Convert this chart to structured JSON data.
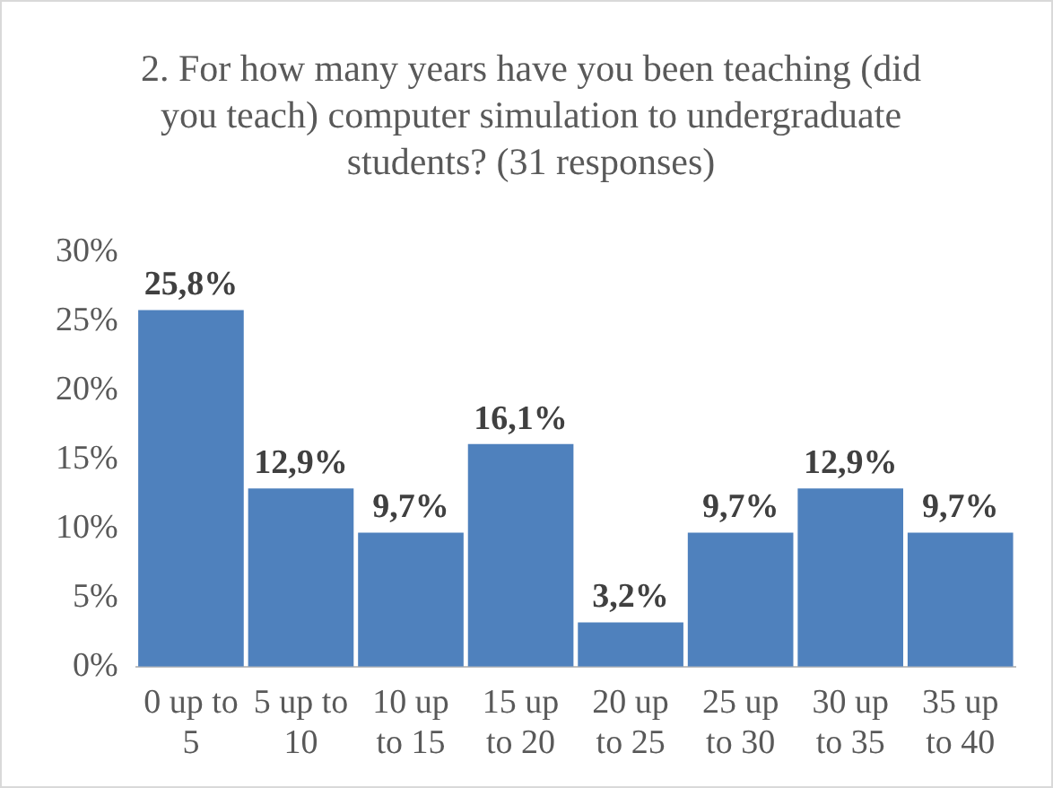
{
  "chart_data": {
    "type": "bar",
    "title": "2. For how many years have you been teaching (did you teach) computer simulation to undergraduate students? (31 responses)",
    "categories": [
      "0 up to 5",
      "5 up to 10",
      "10 up to 15",
      "15 up to 20",
      "20 up to 25",
      "25 up to 30",
      "30 up to 35",
      "35 up to 40"
    ],
    "values": [
      25.8,
      12.9,
      9.7,
      16.1,
      3.2,
      9.7,
      12.9,
      9.7
    ],
    "value_labels": [
      "25,8%",
      "12,9%",
      "9,7%",
      "16,1%",
      "3,2%",
      "9,7%",
      "12,9%",
      "9,7%"
    ],
    "color": "#4f81bd",
    "ylim": [
      0,
      30
    ],
    "yticks": [
      {
        "value": 0,
        "label": "0%"
      },
      {
        "value": 5,
        "label": "5%"
      },
      {
        "value": 10,
        "label": "10%"
      },
      {
        "value": 15,
        "label": "15%"
      },
      {
        "value": 20,
        "label": "20%"
      },
      {
        "value": 25,
        "label": "25%"
      },
      {
        "value": 30,
        "label": "30%"
      }
    ],
    "grid": false,
    "legend": false
  }
}
